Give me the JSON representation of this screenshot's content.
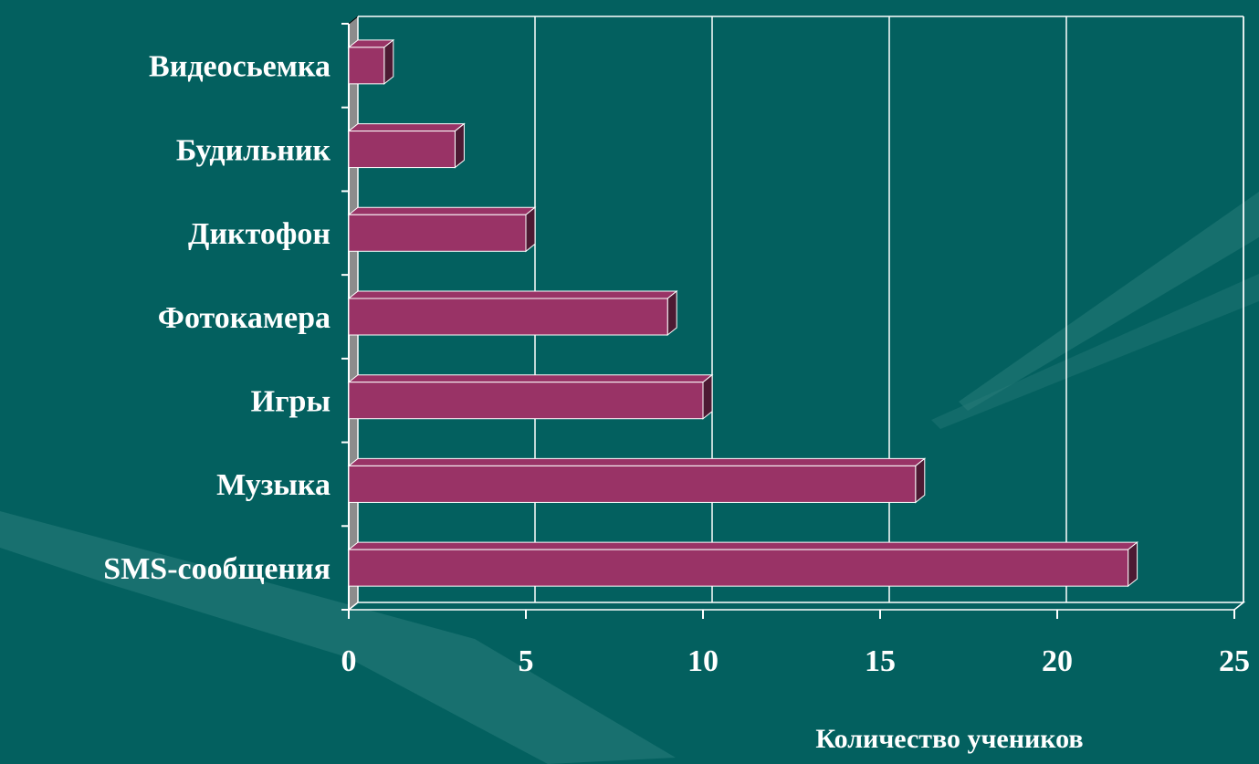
{
  "chart_data": {
    "type": "bar",
    "orientation": "horizontal",
    "categories": [
      "Видеосьемка",
      "Будильник",
      "Диктофон",
      "Фотокамера",
      "Игры",
      "Музыка",
      "SMS-сообщения"
    ],
    "values": [
      1,
      3,
      5,
      9,
      10,
      16,
      22
    ],
    "color": "#993366",
    "xlim": [
      0,
      25
    ],
    "xticks": [
      0,
      5,
      10,
      15,
      20,
      25
    ],
    "xlabel": "Количество учеников",
    "grid": true
  }
}
